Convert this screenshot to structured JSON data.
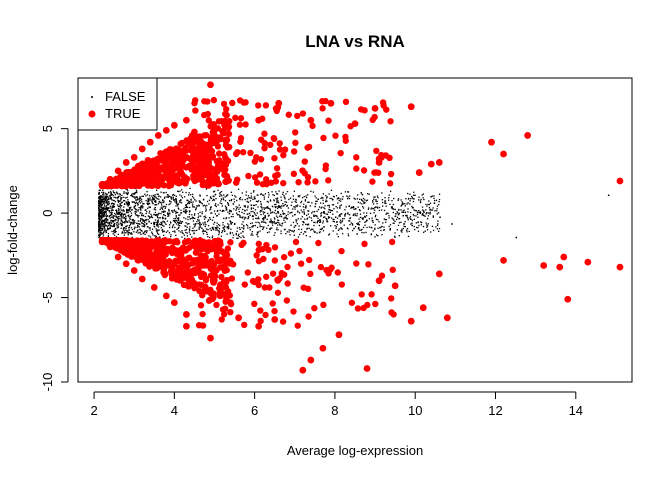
{
  "chart_data": {
    "type": "scatter",
    "title": "LNA vs RNA",
    "xlabel": "Average log-expression",
    "ylabel": "log-fold-change",
    "xlim": [
      1.6,
      15.4
    ],
    "ylim": [
      -10,
      8
    ],
    "x_ticks": [
      "2",
      "4",
      "6",
      "8",
      "10",
      "12",
      "14"
    ],
    "y_ticks": [
      "-10",
      "-5",
      "0",
      "5"
    ],
    "grid": false,
    "legend": {
      "position": "top-left",
      "entries": [
        {
          "label": "FALSE",
          "color": "#000000",
          "marker": "small-dot"
        },
        {
          "label": "TRUE",
          "color": "#ff0000",
          "marker": "filled-circle"
        }
      ]
    },
    "series": [
      {
        "name": "FALSE",
        "color": "#000000",
        "description": "Non-significant genes, dense cloud between roughly x 2.1-11 and y -1.6 to 1.6, widening toward low expression",
        "points": [
          [
            2.2,
            0.3
          ],
          [
            2.3,
            -0.5
          ],
          [
            2.4,
            0.9
          ],
          [
            2.5,
            -1.1
          ],
          [
            2.6,
            0.1
          ],
          [
            2.8,
            1.2
          ],
          [
            3.0,
            -0.8
          ],
          [
            3.2,
            0.6
          ],
          [
            3.5,
            -1.3
          ],
          [
            3.8,
            1.0
          ],
          [
            4.0,
            -0.4
          ],
          [
            4.3,
            0.8
          ],
          [
            4.6,
            -0.9
          ],
          [
            5.0,
            0.5
          ],
          [
            5.4,
            -0.6
          ],
          [
            5.8,
            0.9
          ],
          [
            6.2,
            -0.3
          ],
          [
            6.6,
            0.4
          ],
          [
            7.0,
            -0.7
          ],
          [
            7.5,
            0.6
          ],
          [
            8.0,
            -0.2
          ],
          [
            8.5,
            0.3
          ],
          [
            9.0,
            0.4
          ],
          [
            9.5,
            0.0
          ],
          [
            10.2,
            0.1
          ],
          [
            10.6,
            -0.2
          ],
          [
            10.9,
            -0.6
          ],
          [
            12.5,
            -1.4
          ],
          [
            14.8,
            1.1
          ]
        ]
      },
      {
        "name": "TRUE",
        "color": "#ff0000",
        "description": "Significant genes, funnel-shaped bands above ~1.6 and below ~-1.6 plus outliers",
        "points": [
          [
            2.2,
            1.7
          ],
          [
            2.4,
            2.0
          ],
          [
            2.6,
            2.5
          ],
          [
            2.8,
            3.0
          ],
          [
            3.0,
            3.3
          ],
          [
            3.2,
            3.8
          ],
          [
            3.4,
            4.2
          ],
          [
            3.6,
            4.6
          ],
          [
            3.8,
            4.9
          ],
          [
            4.0,
            5.2
          ],
          [
            4.3,
            5.5
          ],
          [
            4.5,
            4.8
          ],
          [
            4.9,
            7.6
          ],
          [
            5.3,
            5.8
          ],
          [
            6.1,
            5.5
          ],
          [
            6.6,
            6.5
          ],
          [
            7.4,
            5.5
          ],
          [
            7.9,
            6.5
          ],
          [
            8.5,
            5.3
          ],
          [
            9.0,
            6.2
          ],
          [
            9.9,
            6.3
          ],
          [
            9.1,
            3.0
          ],
          [
            10.4,
            2.9
          ],
          [
            10.6,
            3.0
          ],
          [
            10.1,
            2.4
          ],
          [
            11.9,
            4.2
          ],
          [
            12.2,
            3.5
          ],
          [
            12.8,
            4.6
          ],
          [
            15.1,
            1.9
          ],
          [
            2.2,
            -1.7
          ],
          [
            2.4,
            -2.0
          ],
          [
            2.6,
            -2.6
          ],
          [
            2.8,
            -3.0
          ],
          [
            3.0,
            -3.4
          ],
          [
            3.2,
            -3.9
          ],
          [
            3.5,
            -4.4
          ],
          [
            3.8,
            -4.9
          ],
          [
            4.0,
            -5.3
          ],
          [
            4.3,
            -6.0
          ],
          [
            4.3,
            -6.7
          ],
          [
            4.9,
            -7.4
          ],
          [
            5.6,
            -6.2
          ],
          [
            6.1,
            -6.7
          ],
          [
            6.5,
            -6.3
          ],
          [
            7.2,
            -9.3
          ],
          [
            7.4,
            -8.7
          ],
          [
            7.7,
            -8.0
          ],
          [
            8.1,
            -7.2
          ],
          [
            8.8,
            -9.2
          ],
          [
            9.1,
            -4.0
          ],
          [
            9.5,
            -4.3
          ],
          [
            9.9,
            -6.4
          ],
          [
            10.2,
            -5.6
          ],
          [
            10.6,
            -3.6
          ],
          [
            10.8,
            -6.2
          ],
          [
            12.2,
            -2.8
          ],
          [
            13.2,
            -3.1
          ],
          [
            13.6,
            -3.2
          ],
          [
            13.7,
            -2.6
          ],
          [
            13.8,
            -5.1
          ],
          [
            14.3,
            -2.9
          ],
          [
            15.1,
            -3.2
          ]
        ]
      }
    ]
  }
}
